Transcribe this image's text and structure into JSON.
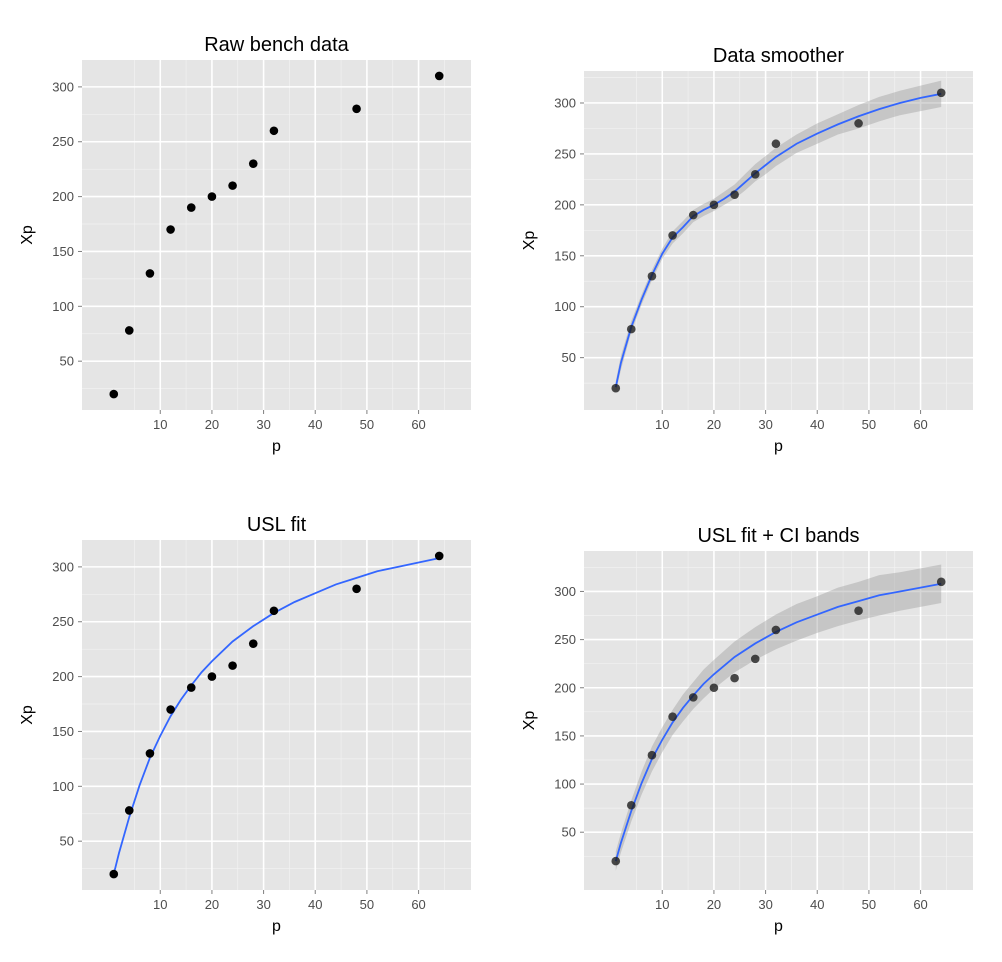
{
  "chart_data": [
    {
      "type": "scatter",
      "title": "Raw bench data",
      "xlabel": "p",
      "ylabel": "Xp",
      "x": [
        1,
        4,
        8,
        12,
        16,
        20,
        24,
        28,
        32,
        48,
        64
      ],
      "y": [
        20,
        78,
        130,
        170,
        190,
        200,
        210,
        230,
        260,
        280,
        310
      ],
      "xlim": [
        -5.15,
        70.15
      ],
      "ylim": [
        5.5,
        324.5
      ],
      "xticks": [
        10,
        20,
        30,
        40,
        50,
        60
      ],
      "yticks": [
        50,
        100,
        150,
        200,
        250,
        300
      ],
      "grid": true,
      "legend": "none",
      "overlay": "none"
    },
    {
      "type": "scatter",
      "title": "Data smoother",
      "xlabel": "p",
      "ylabel": "Xp",
      "x": [
        1,
        4,
        8,
        12,
        16,
        20,
        24,
        28,
        32,
        48,
        64
      ],
      "y": [
        20,
        78,
        130,
        170,
        190,
        200,
        210,
        230,
        260,
        280,
        310
      ],
      "xlim": [
        -5.15,
        70.15
      ],
      "ylim": [
        -1.4,
        331.4
      ],
      "xticks": [
        10,
        20,
        30,
        40,
        50,
        60
      ],
      "yticks": [
        50,
        100,
        150,
        200,
        250,
        300
      ],
      "grid": true,
      "legend": "none",
      "overlay": "smoother",
      "smooth_curve": {
        "x": [
          1,
          2,
          4,
          6,
          8,
          10,
          12,
          14,
          16,
          18,
          20,
          22,
          24,
          26,
          28,
          30,
          32,
          36,
          40,
          44,
          48,
          52,
          56,
          60,
          64
        ],
        "y": [
          21,
          45,
          80,
          107,
          131,
          152,
          168,
          178,
          189,
          195,
          200,
          206,
          213,
          222,
          231,
          239,
          247,
          260,
          270,
          279,
          287,
          294,
          300,
          305,
          309
        ],
        "lower": [
          16,
          38,
          75,
          102,
          126,
          147,
          162,
          172,
          183,
          189,
          194,
          200,
          206,
          214,
          223,
          230,
          238,
          251,
          260,
          269,
          275,
          282,
          288,
          292,
          296
        ],
        "upper": [
          27,
          52,
          86,
          112,
          136,
          157,
          174,
          184,
          195,
          201,
          206,
          213,
          220,
          230,
          240,
          248,
          256,
          269,
          280,
          289,
          298,
          306,
          312,
          317,
          322
        ]
      }
    },
    {
      "type": "scatter",
      "title": "USL fit",
      "xlabel": "p",
      "ylabel": "Xp",
      "x": [
        1,
        4,
        8,
        12,
        16,
        20,
        24,
        28,
        32,
        48,
        64
      ],
      "y": [
        20,
        78,
        130,
        170,
        190,
        200,
        210,
        230,
        260,
        280,
        310
      ],
      "xlim": [
        -5.15,
        70.15
      ],
      "ylim": [
        5.5,
        324.5
      ],
      "xticks": [
        10,
        20,
        30,
        40,
        50,
        60
      ],
      "yticks": [
        50,
        100,
        150,
        200,
        250,
        300
      ],
      "grid": true,
      "legend": "none",
      "overlay": "fit",
      "fit_curve": {
        "x": [
          1,
          2,
          4,
          6,
          8,
          10,
          12,
          14,
          16,
          18,
          20,
          24,
          28,
          32,
          36,
          40,
          44,
          48,
          52,
          56,
          60,
          64
        ],
        "y": [
          20,
          39,
          72,
          101,
          126,
          146,
          164,
          179,
          192,
          204,
          214,
          232,
          246,
          258,
          268,
          276,
          284,
          290,
          296,
          300,
          304,
          308
        ]
      }
    },
    {
      "type": "scatter",
      "title": "USL fit + CI bands",
      "xlabel": "p",
      "ylabel": "Xp",
      "x": [
        1,
        4,
        8,
        12,
        16,
        20,
        24,
        28,
        32,
        48,
        64
      ],
      "y": [
        20,
        78,
        130,
        170,
        190,
        200,
        210,
        230,
        260,
        280,
        310
      ],
      "xlim": [
        -5.15,
        70.15
      ],
      "ylim": [
        -10,
        342
      ],
      "xticks": [
        10,
        20,
        30,
        40,
        50,
        60
      ],
      "yticks": [
        50,
        100,
        150,
        200,
        250,
        300
      ],
      "grid": true,
      "legend": "none",
      "overlay": "fit+ci",
      "fit_curve": {
        "x": [
          1,
          2,
          4,
          6,
          8,
          10,
          12,
          14,
          16,
          18,
          20,
          24,
          28,
          32,
          36,
          40,
          44,
          48,
          52,
          56,
          60,
          64
        ],
        "y": [
          20,
          39,
          72,
          101,
          126,
          146,
          164,
          179,
          192,
          204,
          214,
          232,
          246,
          258,
          268,
          276,
          284,
          290,
          296,
          300,
          304,
          308
        ],
        "lower": [
          10,
          29,
          61,
          89,
          113,
          133,
          151,
          165,
          178,
          189,
          199,
          216,
          229,
          240,
          249,
          257,
          264,
          270,
          275,
          280,
          284,
          288
        ],
        "upper": [
          30,
          49,
          83,
          113,
          139,
          159,
          177,
          193,
          206,
          219,
          229,
          248,
          263,
          276,
          287,
          295,
          304,
          310,
          317,
          320,
          324,
          328
        ]
      }
    }
  ]
}
